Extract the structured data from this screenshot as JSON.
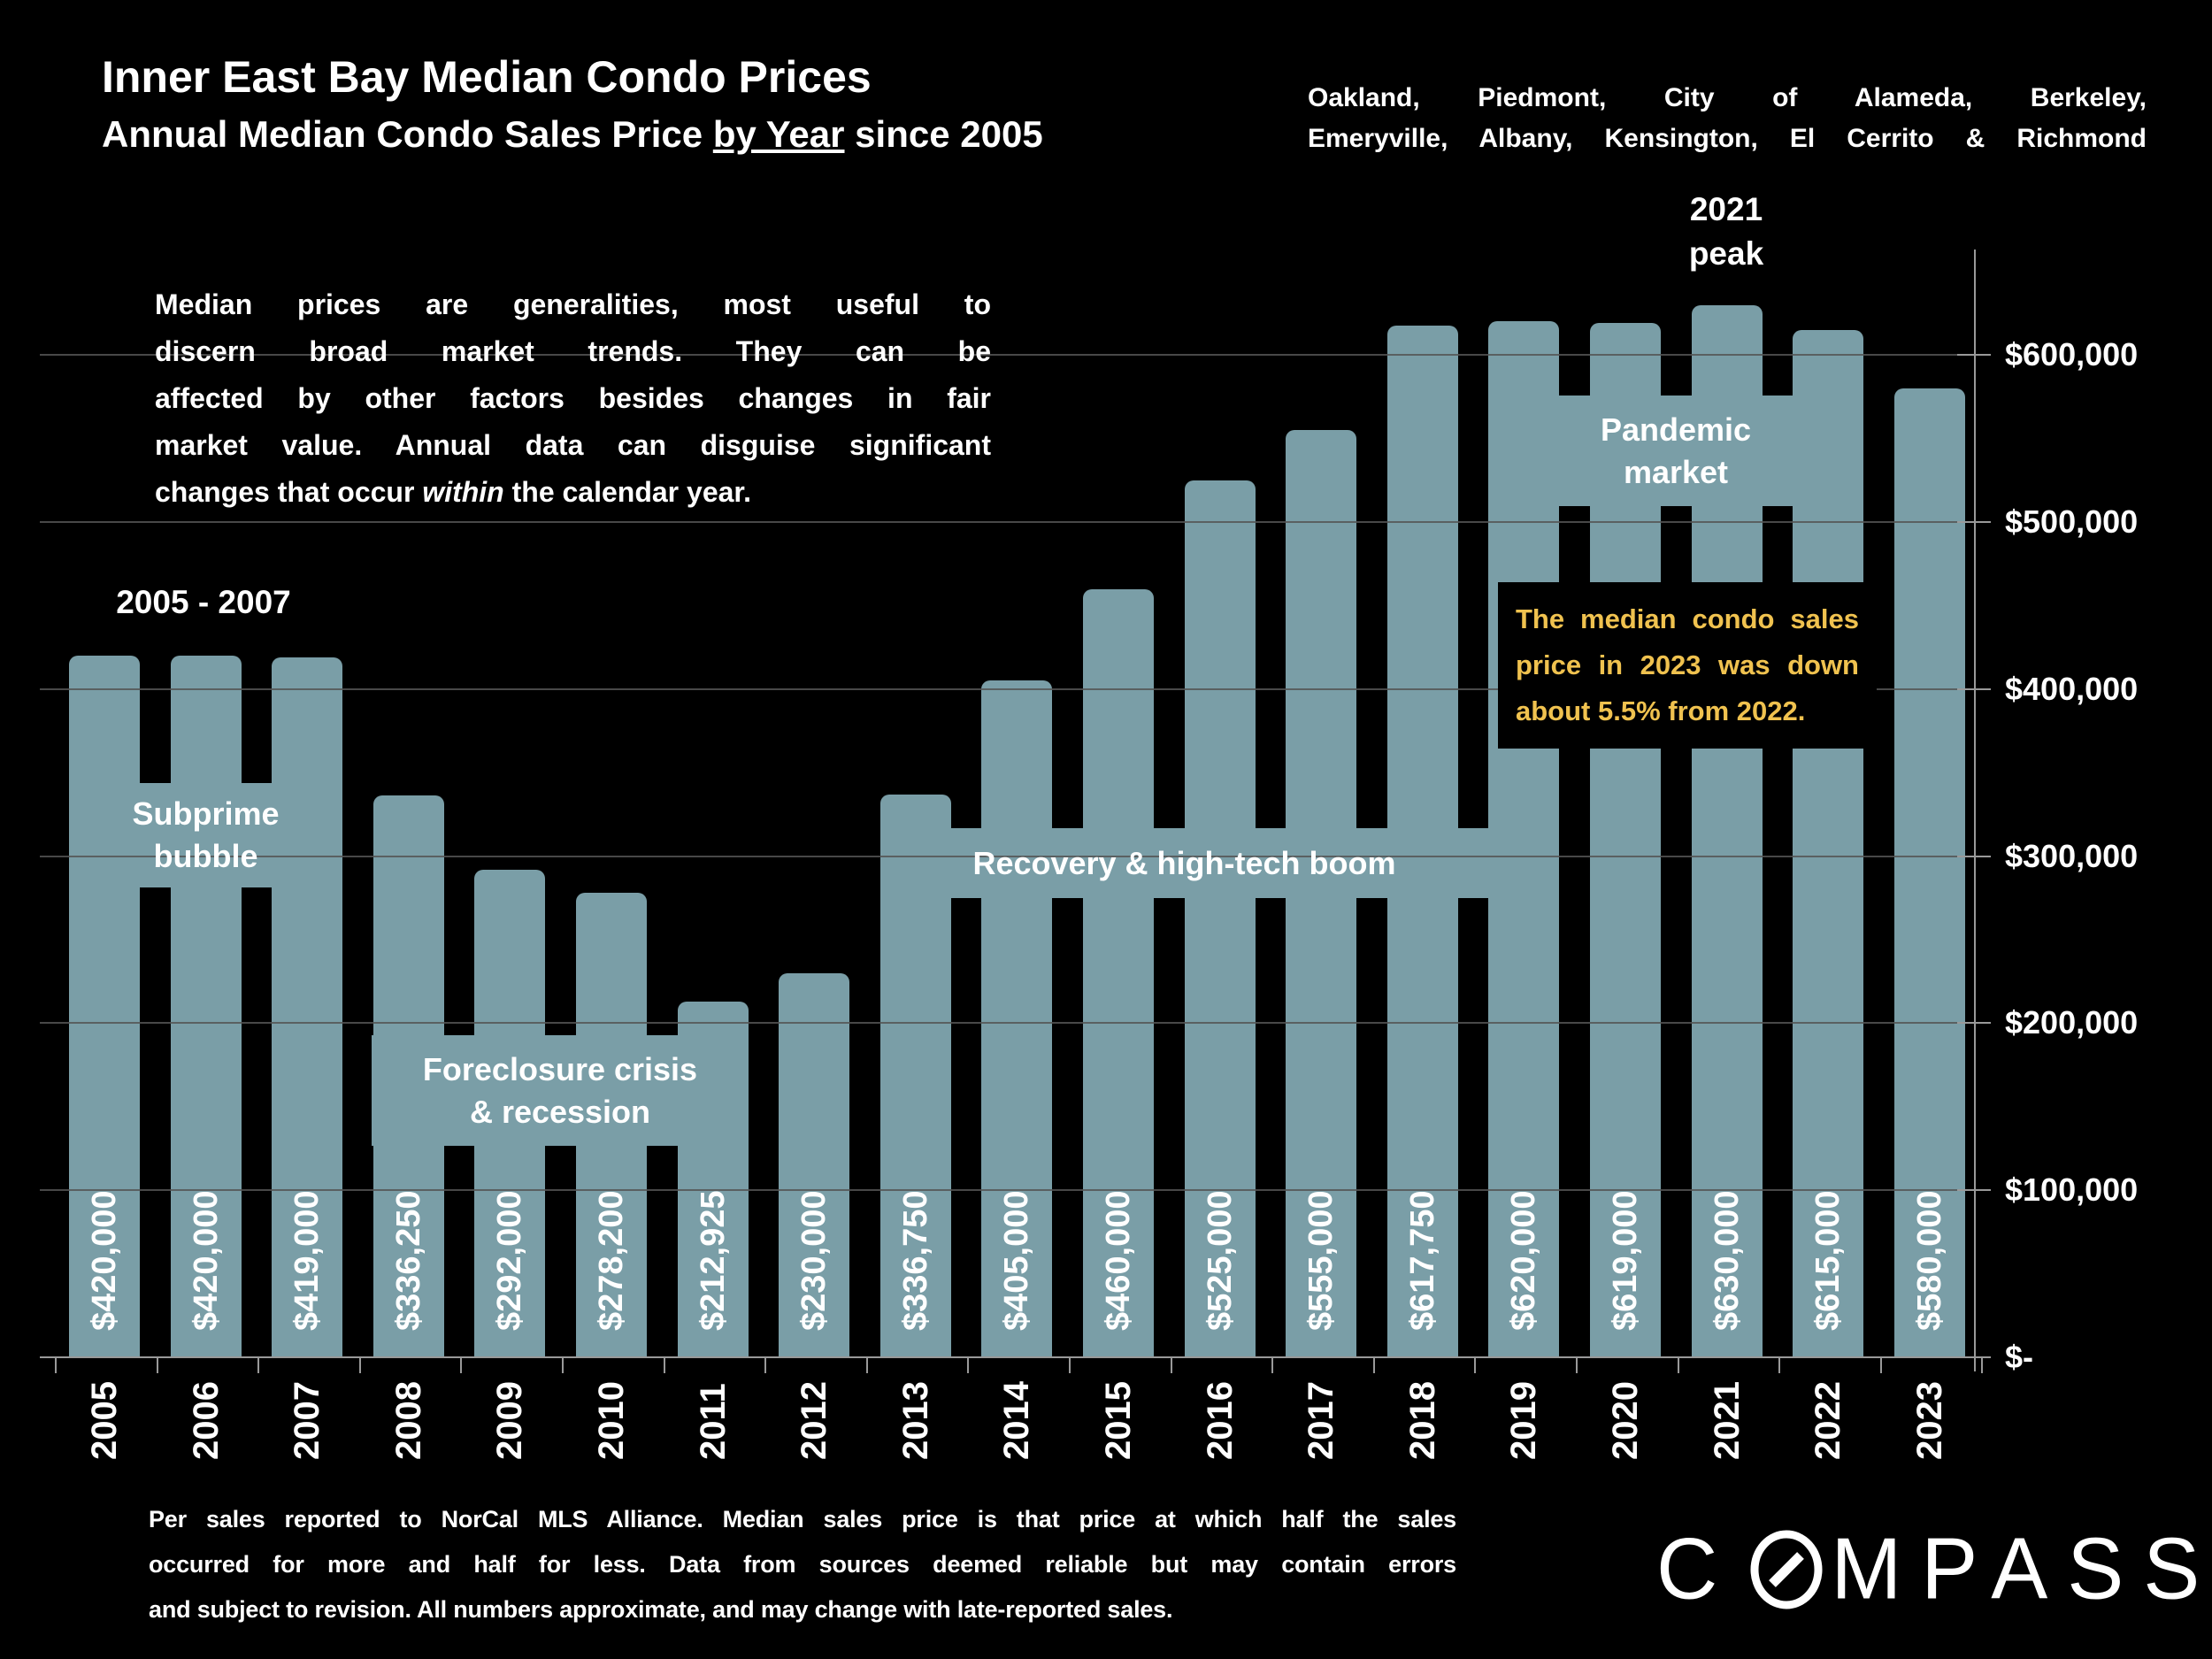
{
  "slide": {
    "title": "Inner East Bay Median Condo Prices",
    "subtitle_pre": "Annual Median Condo Sales Price ",
    "subtitle_underlined": "by Year",
    "subtitle_post": " since 2005",
    "region_lines": [
      "Oakland, Piedmont, City of Alameda, Berkeley,",
      "Emeryville, Albany, Kensington, El Cerrito & Richmond"
    ],
    "intro_lines": [
      "Median prices are generalities, most useful to",
      "discern broad market trends. They can be",
      "affected by other factors besides changes in fair",
      "market value. Annual data can disguise significant"
    ],
    "intro_last_pre": "changes that occur ",
    "intro_last_italic": "within",
    "intro_last_post": " the calendar year.",
    "footer_lines": [
      "Per sales reported to NorCal MLS Alliance. Median sales price is that price at which half the sales",
      "occurred for more and half for less. Data from sources deemed reliable but may contain errors",
      "and subject to revision. All numbers approximate, and may change with late-reported sales."
    ],
    "logo_first_letter": "C",
    "logo_rest": "MPASS"
  },
  "callout": {
    "lines": [
      "The median condo sales",
      "price in 2023 was down",
      "about 5.5% from 2022."
    ],
    "text_color": "#f0c24f",
    "bg_color": "#000000"
  },
  "chart_data": {
    "type": "bar",
    "title": "Inner East Bay Median Condo Prices - Annual Median Condo Sales Price by Year since 2005",
    "xlabel": "",
    "ylabel": "",
    "categories": [
      "2005",
      "2006",
      "2007",
      "2008",
      "2009",
      "2010",
      "2011",
      "2012",
      "2013",
      "2014",
      "2015",
      "2016",
      "2017",
      "2018",
      "2019",
      "2020",
      "2021",
      "2022",
      "2023"
    ],
    "values": [
      420000,
      420000,
      419000,
      336250,
      292000,
      278200,
      212925,
      230000,
      336750,
      405000,
      460000,
      525000,
      555000,
      617750,
      620000,
      619000,
      630000,
      615000,
      580000
    ],
    "value_labels": [
      "$420,000",
      "$420,000",
      "$419,000",
      "$336,250",
      "$292,000",
      "$278,200",
      "$212,925",
      "$230,000",
      "$336,750",
      "$405,000",
      "$460,000",
      "$525,000",
      "$555,000",
      "$617,750",
      "$620,000",
      "$619,000",
      "$630,000",
      "$615,000",
      "$580,000"
    ],
    "y_tick_labels_top_to_bottom": [
      "$600,000",
      "$500,000",
      "$400,000",
      "$300,000",
      "$200,000",
      "$100,000",
      "$-"
    ],
    "y_tick_values_top_to_bottom": [
      600000,
      500000,
      400000,
      300000,
      200000,
      100000,
      0
    ],
    "ylim": [
      0,
      660000
    ],
    "grid": true,
    "legend": "none",
    "bar_color": "#7a9ea7",
    "gridline_color": "#555555",
    "axis_color": "#999999",
    "annotations": {
      "era": {
        "text": "2005 - 2007"
      },
      "peak": {
        "lines": [
          "2021",
          "peak"
        ]
      },
      "subprime": {
        "lines": [
          "Subprime",
          "bubble"
        ]
      },
      "foreclosure": {
        "lines": [
          "Foreclosure crisis",
          "& recession"
        ]
      },
      "recovery": {
        "lines": [
          "Recovery & high-tech boom"
        ]
      },
      "pandemic": {
        "lines": [
          "Pandemic",
          "market"
        ]
      }
    }
  }
}
